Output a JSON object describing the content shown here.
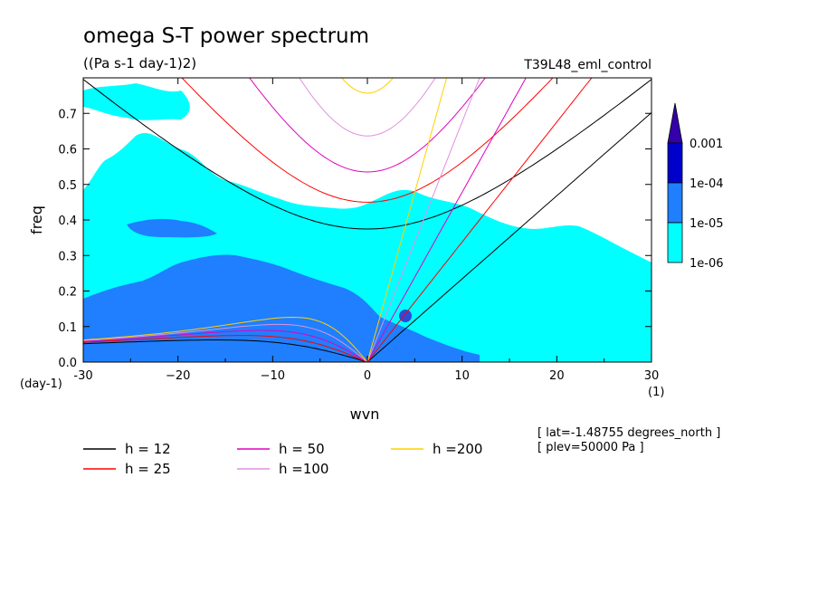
{
  "chart_data": {
    "type": "contour",
    "title": "omega S-T power spectrum",
    "subtitle": "((Pa s-1 day-1)2)",
    "run_label": "T39L48_eml_control",
    "xlabel": "wvn",
    "ylabel": "freq",
    "x_unit": "(1)",
    "y_unit": "(day-1)",
    "xlim": [
      -30,
      30
    ],
    "ylim": [
      0,
      0.8
    ],
    "x_ticks": [
      -30,
      -20,
      -10,
      0,
      10,
      20,
      30
    ],
    "x_tick_labels": [
      "-30",
      "−20",
      "−10",
      "0",
      "10",
      "20",
      "30"
    ],
    "y_ticks": [
      0.0,
      0.1,
      0.2,
      0.3,
      0.4,
      0.5,
      0.6,
      0.7
    ],
    "y_tick_labels": [
      "0.0",
      "0.1",
      "0.2",
      "0.3",
      "0.4",
      "0.5",
      "0.6",
      "0.7"
    ],
    "colorbar": {
      "levels": [
        "1e-06",
        "1e-05",
        "1e-04",
        "0.001"
      ],
      "colors": [
        "#00ffff",
        "#1f7fff",
        "#0000cc",
        "#3300aa"
      ]
    },
    "series": [
      {
        "name": "h = 12",
        "h": 12,
        "color": "#000000"
      },
      {
        "name": "h = 25",
        "h": 25,
        "color": "#ff0000"
      },
      {
        "name": "h = 50",
        "h": 50,
        "color": "#e000c0"
      },
      {
        "name": "h =100",
        "h": 100,
        "color": "#e090e0"
      },
      {
        "name": "h =200",
        "h": 200,
        "color": "#ffd000"
      }
    ],
    "annotations": [
      "[ lat=-1.48755 degrees_north ]",
      "[ plev=50000 Pa ]"
    ]
  }
}
